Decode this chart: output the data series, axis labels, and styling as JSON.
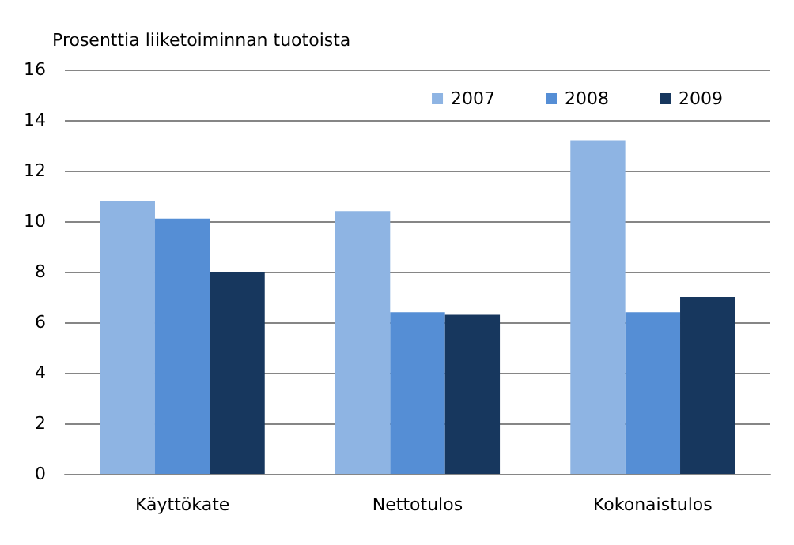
{
  "chart_data": {
    "type": "bar",
    "ylabel": "Prosenttia liiketoiminnan tuotoista",
    "categories": [
      "Käyttökate",
      "Nettotulos",
      "Kokonaistulos"
    ],
    "series": [
      {
        "name": "2007",
        "color": "#8eb4e3",
        "values": [
          10.8,
          10.4,
          13.2
        ]
      },
      {
        "name": "2008",
        "color": "#558ed5",
        "values": [
          10.1,
          6.4,
          6.4
        ]
      },
      {
        "name": "2009",
        "color": "#17375e",
        "values": [
          8.0,
          6.3,
          7.0
        ]
      }
    ],
    "ylim": [
      0,
      16
    ],
    "yticks": [
      0,
      2,
      4,
      6,
      8,
      10,
      12,
      14,
      16
    ],
    "grid": "y",
    "legend": "top right"
  }
}
